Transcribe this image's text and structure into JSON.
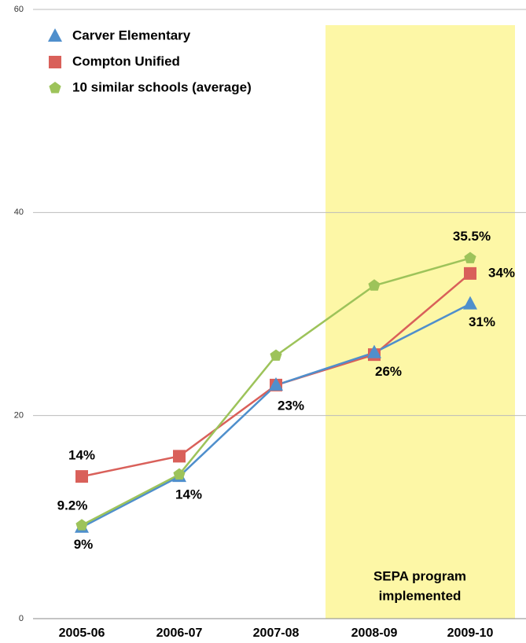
{
  "chart_data": {
    "type": "line",
    "categories": [
      "2005-06",
      "2006-07",
      "2007-08",
      "2008-09",
      "2009-10"
    ],
    "series": [
      {
        "name": "Carver Elementary",
        "color": "#4f8fcc",
        "marker": "triangle",
        "values": [
          9,
          14,
          23,
          26.2,
          31
        ],
        "value_labels": [
          "9%",
          "14%",
          "23%",
          "26%",
          "31%"
        ]
      },
      {
        "name": "Compton Unified",
        "color": "#d9605a",
        "marker": "square",
        "values": [
          14,
          16,
          23,
          26,
          34
        ],
        "value_labels": [
          "14%",
          null,
          null,
          null,
          "34%"
        ]
      },
      {
        "name": "10 similar schools (average)",
        "color": "#9dc35a",
        "marker": "pentagon",
        "values": [
          9.2,
          14.2,
          25.9,
          32.8,
          35.5
        ],
        "value_labels": [
          "9.2%",
          null,
          null,
          null,
          "35.5%"
        ]
      }
    ],
    "annotation": [
      "SEPA program",
      "implemented"
    ],
    "ylim": [
      0,
      60
    ],
    "yticks": [
      0,
      20,
      40,
      60
    ],
    "grid": true,
    "legend": "upper left"
  }
}
